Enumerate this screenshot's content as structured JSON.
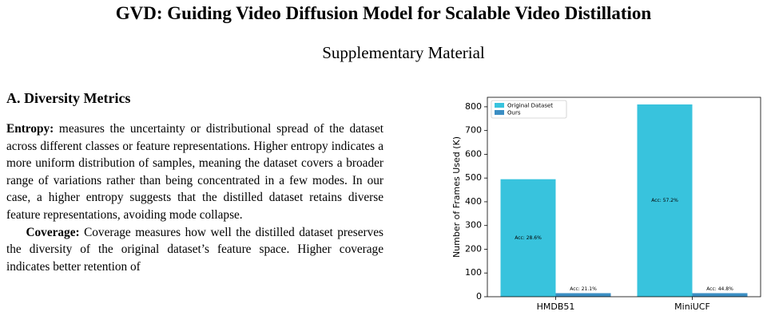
{
  "title": "GVD: Guiding Video Diffusion Model for Scalable Video Distillation",
  "subtitle": "Supplementary Material",
  "section": {
    "heading": "A. Diversity Metrics",
    "paragraphs": [
      {
        "lead": "Entropy:",
        "text": "measures the uncertainty or distributional spread of the dataset across different classes or feature representations. Higher entropy indicates a more uniform distribution of samples, meaning the dataset covers a broader range of variations rather than being concentrated in a few modes. In our case, a higher entropy suggests that the distilled dataset retains diverse feature representations, avoiding mode collapse."
      },
      {
        "lead": "Coverage:",
        "text": "Coverage measures how well the distilled dataset preserves the diversity of the original dataset’s feature space. Higher coverage indicates better retention of"
      }
    ]
  },
  "chart_data": {
    "type": "bar",
    "ylabel": "Number of Frames Used (K)",
    "categories": [
      "HMDB51",
      "MiniUCF"
    ],
    "series": [
      {
        "name": "Original Dataset",
        "color": "#38c3dd",
        "values": [
          495,
          810
        ],
        "annotations": [
          "Acc: 28.6%",
          "Acc: 57.2%"
        ]
      },
      {
        "name": "Ours",
        "color": "#3b8ec3",
        "values": [
          15,
          15
        ],
        "annotations": [
          "Acc: 21.1%",
          "Acc: 44.8%"
        ]
      }
    ],
    "ylim": [
      0,
      840
    ],
    "yticks": [
      0,
      100,
      200,
      300,
      400,
      500,
      600,
      700,
      800
    ],
    "legend": "upper-left"
  }
}
